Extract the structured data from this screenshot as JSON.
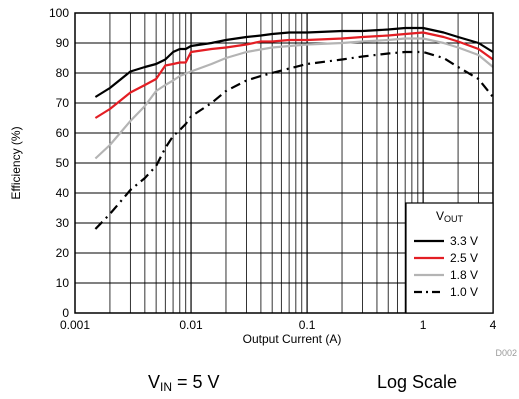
{
  "chart_data": {
    "type": "line",
    "xlabel": "Output Current (A)",
    "ylabel": "Efficiency (%)",
    "x_scale": "log",
    "xlim": [
      0.001,
      4
    ],
    "ylim": [
      0,
      100
    ],
    "grid": true,
    "legend_placement": "bottom-right",
    "legend_title": {
      "main": "V",
      "sub": "OUT"
    },
    "x_ticks": [
      {
        "value": 0.001,
        "label": "0.001"
      },
      {
        "value": 0.01,
        "label": "0.01"
      },
      {
        "value": 0.1,
        "label": "0.1"
      },
      {
        "value": 1,
        "label": "1"
      },
      {
        "value": 4,
        "label": "4"
      }
    ],
    "y_ticks": [
      {
        "value": 0,
        "label": "0"
      },
      {
        "value": 10,
        "label": "10"
      },
      {
        "value": 20,
        "label": "20"
      },
      {
        "value": 30,
        "label": "30"
      },
      {
        "value": 40,
        "label": "40"
      },
      {
        "value": 50,
        "label": "50"
      },
      {
        "value": 60,
        "label": "60"
      },
      {
        "value": 70,
        "label": "70"
      },
      {
        "value": 80,
        "label": "80"
      },
      {
        "value": 90,
        "label": "90"
      },
      {
        "value": 100,
        "label": "100"
      }
    ],
    "series": [
      {
        "name": "3.3 V",
        "color": "#000000",
        "dash": "solid",
        "x": [
          0.0015,
          0.002,
          0.003,
          0.004,
          0.005,
          0.006,
          0.007,
          0.008,
          0.009,
          0.01,
          0.015,
          0.02,
          0.03,
          0.04,
          0.05,
          0.07,
          0.1,
          0.2,
          0.3,
          0.5,
          0.7,
          1.0,
          1.5,
          2.0,
          3.0,
          4.0
        ],
        "y": [
          72,
          75,
          80.5,
          82,
          83,
          84.5,
          87,
          88,
          88,
          89,
          90,
          91,
          92,
          92.5,
          93,
          93.5,
          93.5,
          94,
          94,
          94.5,
          95,
          95,
          93.5,
          92,
          90,
          87
        ]
      },
      {
        "name": "2.5 V",
        "color": "#e31e24",
        "dash": "solid",
        "x": [
          0.0015,
          0.002,
          0.003,
          0.004,
          0.005,
          0.006,
          0.007,
          0.008,
          0.009,
          0.01,
          0.015,
          0.02,
          0.03,
          0.04,
          0.05,
          0.07,
          0.1,
          0.2,
          0.3,
          0.5,
          0.7,
          1.0,
          1.5,
          2.0,
          3.0,
          4.0
        ],
        "y": [
          65,
          68,
          73.5,
          76,
          78,
          82.5,
          83,
          83.5,
          83.5,
          87,
          88,
          88.5,
          89.5,
          90.5,
          90.5,
          91,
          91,
          91.5,
          92,
          92.5,
          93,
          93.5,
          92,
          90.5,
          88,
          84.5
        ]
      },
      {
        "name": "1.8 V",
        "color": "#b4b4b4",
        "dash": "solid",
        "x": [
          0.0015,
          0.002,
          0.003,
          0.004,
          0.005,
          0.006,
          0.007,
          0.008,
          0.01,
          0.015,
          0.02,
          0.03,
          0.05,
          0.1,
          0.2,
          0.3,
          0.5,
          0.7,
          1.0,
          1.5,
          2.0,
          3.0,
          4.0
        ],
        "y": [
          51.5,
          56,
          64,
          69,
          74,
          76,
          77.5,
          79,
          80.5,
          83,
          85,
          87,
          88.5,
          89.5,
          90,
          90.5,
          91,
          91.5,
          91.5,
          90,
          88.5,
          86,
          82
        ]
      },
      {
        "name": "1.0 V",
        "color": "#000000",
        "dash": "dashdot",
        "x": [
          0.0015,
          0.002,
          0.003,
          0.004,
          0.005,
          0.006,
          0.007,
          0.008,
          0.009,
          0.01,
          0.015,
          0.02,
          0.03,
          0.04,
          0.05,
          0.07,
          0.1,
          0.2,
          0.3,
          0.5,
          0.7,
          1.0,
          1.5,
          2.0,
          3.0,
          4.0
        ],
        "y": [
          28,
          33,
          41,
          45,
          49,
          55,
          59,
          61,
          63,
          65.5,
          70,
          74,
          77.5,
          79,
          80,
          81.5,
          83,
          84.5,
          85.5,
          86.5,
          87,
          87,
          85,
          82,
          78,
          72
        ]
      }
    ],
    "code": "D002"
  },
  "captions": {
    "vin_main": "V",
    "vin_sub": "IN",
    "vin_rest": " = 5 V",
    "scale": "Log Scale"
  }
}
